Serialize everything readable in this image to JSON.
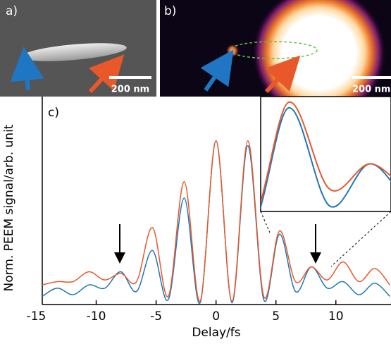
{
  "panels": {
    "a": {
      "label": "a)",
      "scale_bar": "200 nm"
    },
    "b": {
      "label": "b)",
      "scale_bar": "200 nm"
    }
  },
  "chart_data": {
    "type": "line",
    "label": "c)",
    "xlabel": "Delay/fs",
    "ylabel": "Norm. PEEM signal/arb. unit",
    "x": [
      -14.5,
      -13.25,
      -11.93,
      -10.6,
      -9.28,
      -7.95,
      -6.63,
      -5.3,
      -3.98,
      -2.65,
      -1.33,
      0,
      1.33,
      2.65,
      3.98,
      5.3,
      6.63,
      7.95,
      9.28,
      10.6,
      11.93,
      13.25,
      14.5
    ],
    "series": [
      {
        "color": "#1f77b4",
        "values": [
          0.05,
          0.1,
          0.06,
          0.12,
          0.1,
          0.2,
          0.08,
          0.33,
          0.03,
          0.65,
          0.01,
          1.0,
          0.01,
          0.97,
          0.03,
          0.43,
          0.08,
          0.23,
          0.1,
          0.14,
          0.06,
          0.13,
          0.05
        ]
      },
      {
        "color": "#e8582a",
        "values": [
          0.12,
          0.14,
          0.14,
          0.2,
          0.15,
          0.19,
          0.14,
          0.47,
          0.05,
          0.75,
          0.02,
          1.0,
          0.02,
          1.0,
          0.05,
          0.45,
          0.14,
          0.23,
          0.15,
          0.26,
          0.14,
          0.22,
          0.12
        ]
      }
    ],
    "xlim": [
      -14.5,
      14.6
    ],
    "ylim": [
      0,
      1.27
    ],
    "xticks": [
      -15,
      -10,
      -5,
      0,
      5,
      10
    ],
    "inset": {
      "xlim": [
        4.38,
        8.64
      ],
      "ylim": [
        0.06,
        0.47
      ]
    }
  }
}
